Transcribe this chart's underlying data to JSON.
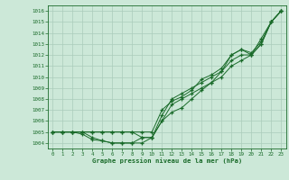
{
  "title": "Graphe pression niveau de la mer (hPa)",
  "background_color": "#cce8d8",
  "grid_color": "#aaccbb",
  "line_color": "#1a6b2a",
  "marker": "+",
  "xlim": [
    -0.5,
    23.5
  ],
  "ylim": [
    1003.5,
    1016.5
  ],
  "xticks": [
    0,
    1,
    2,
    3,
    4,
    5,
    6,
    7,
    8,
    9,
    10,
    11,
    12,
    13,
    14,
    15,
    16,
    17,
    18,
    19,
    20,
    21,
    22,
    23
  ],
  "yticks": [
    1004,
    1005,
    1006,
    1007,
    1008,
    1009,
    1010,
    1011,
    1012,
    1013,
    1014,
    1015,
    1016
  ],
  "series": [
    [
      1005.0,
      1005.0,
      1005.0,
      1005.0,
      1004.5,
      1004.2,
      1004.0,
      1004.0,
      1004.0,
      1004.5,
      1004.5,
      1006.0,
      1007.5,
      1008.0,
      1008.5,
      1009.0,
      1009.5,
      1010.0,
      1011.0,
      1011.5,
      1012.0,
      1013.0,
      1015.0,
      1016.0
    ],
    [
      1005.0,
      1005.0,
      1005.0,
      1004.8,
      1004.3,
      1004.2,
      1004.0,
      1004.0,
      1004.0,
      1004.0,
      1004.5,
      1006.5,
      1008.0,
      1008.5,
      1009.0,
      1009.5,
      1010.0,
      1010.5,
      1011.5,
      1012.0,
      1012.0,
      1013.5,
      1015.0,
      1016.0
    ],
    [
      1005.0,
      1005.0,
      1005.0,
      1005.0,
      1005.0,
      1005.0,
      1005.0,
      1005.0,
      1005.0,
      1004.5,
      1004.5,
      1006.0,
      1006.8,
      1007.2,
      1008.0,
      1008.8,
      1009.5,
      1010.5,
      1012.0,
      1012.5,
      1012.0,
      1013.0,
      1015.0,
      1016.0
    ],
    [
      1005.0,
      1005.0,
      1005.0,
      1005.0,
      1005.0,
      1005.0,
      1005.0,
      1005.0,
      1005.0,
      1005.0,
      1005.0,
      1007.0,
      1007.8,
      1008.2,
      1008.8,
      1009.8,
      1010.2,
      1010.8,
      1012.0,
      1012.5,
      1012.2,
      1013.2,
      1015.0,
      1016.0
    ]
  ]
}
